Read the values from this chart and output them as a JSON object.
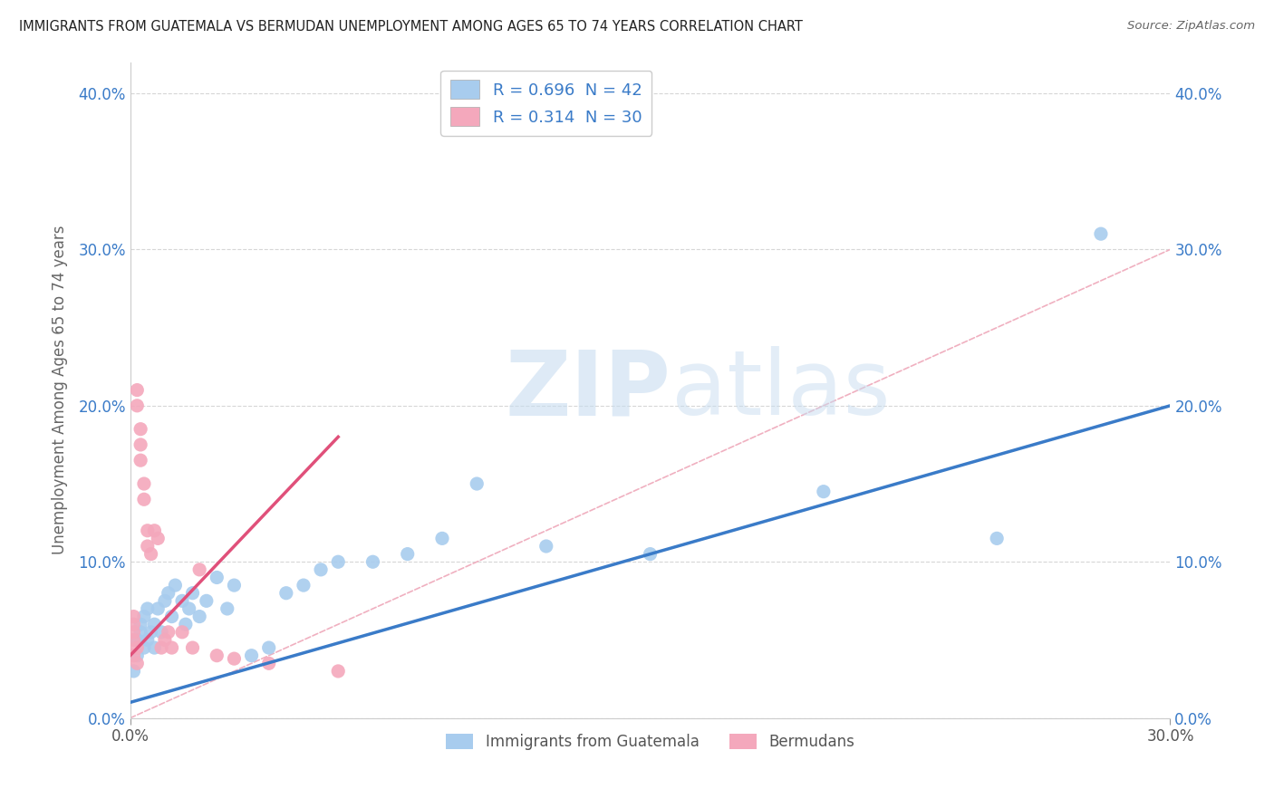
{
  "title": "IMMIGRANTS FROM GUATEMALA VS BERMUDAN UNEMPLOYMENT AMONG AGES 65 TO 74 YEARS CORRELATION CHART",
  "source": "Source: ZipAtlas.com",
  "ylabel": "Unemployment Among Ages 65 to 74 years",
  "legend_label1": "Immigrants from Guatemala",
  "legend_label2": "Bermudans",
  "R1": 0.696,
  "N1": 42,
  "R2": 0.314,
  "N2": 30,
  "color1": "#a8ccee",
  "color2": "#f4a8bc",
  "line_color1": "#3a7bc8",
  "line_color2": "#e0507a",
  "diag_color": "#f0b0c0",
  "xlim": [
    0.0,
    0.3
  ],
  "ylim": [
    0.0,
    0.42
  ],
  "blue_scatter_x": [
    0.001,
    0.002,
    0.002,
    0.003,
    0.003,
    0.004,
    0.004,
    0.005,
    0.005,
    0.006,
    0.007,
    0.007,
    0.008,
    0.009,
    0.01,
    0.011,
    0.012,
    0.013,
    0.015,
    0.016,
    0.017,
    0.018,
    0.02,
    0.022,
    0.025,
    0.028,
    0.03,
    0.035,
    0.04,
    0.045,
    0.05,
    0.055,
    0.06,
    0.07,
    0.08,
    0.09,
    0.1,
    0.12,
    0.15,
    0.2,
    0.25,
    0.28
  ],
  "blue_scatter_y": [
    0.03,
    0.04,
    0.05,
    0.055,
    0.06,
    0.045,
    0.065,
    0.05,
    0.07,
    0.055,
    0.06,
    0.045,
    0.07,
    0.055,
    0.075,
    0.08,
    0.065,
    0.085,
    0.075,
    0.06,
    0.07,
    0.08,
    0.065,
    0.075,
    0.09,
    0.07,
    0.085,
    0.04,
    0.045,
    0.08,
    0.085,
    0.095,
    0.1,
    0.1,
    0.105,
    0.115,
    0.15,
    0.11,
    0.105,
    0.145,
    0.115,
    0.31
  ],
  "pink_scatter_x": [
    0.001,
    0.001,
    0.001,
    0.001,
    0.001,
    0.002,
    0.002,
    0.002,
    0.002,
    0.003,
    0.003,
    0.003,
    0.004,
    0.004,
    0.005,
    0.005,
    0.006,
    0.007,
    0.008,
    0.009,
    0.01,
    0.011,
    0.012,
    0.015,
    0.018,
    0.02,
    0.025,
    0.03,
    0.04,
    0.06
  ],
  "pink_scatter_y": [
    0.04,
    0.05,
    0.055,
    0.06,
    0.065,
    0.035,
    0.045,
    0.2,
    0.21,
    0.165,
    0.175,
    0.185,
    0.14,
    0.15,
    0.11,
    0.12,
    0.105,
    0.12,
    0.115,
    0.045,
    0.05,
    0.055,
    0.045,
    0.055,
    0.045,
    0.095,
    0.04,
    0.038,
    0.035,
    0.03
  ],
  "blue_line_x": [
    0.0,
    0.3
  ],
  "blue_line_y": [
    0.01,
    0.2
  ],
  "pink_line_x": [
    0.0,
    0.06
  ],
  "pink_line_y": [
    0.04,
    0.18
  ],
  "watermark_zip": "ZIP",
  "watermark_atlas": "atlas",
  "background_color": "#ffffff",
  "grid_color": "#cccccc",
  "x_ticks": [
    0.0,
    0.3
  ],
  "y_ticks": [
    0.0,
    0.1,
    0.2,
    0.3,
    0.4
  ]
}
